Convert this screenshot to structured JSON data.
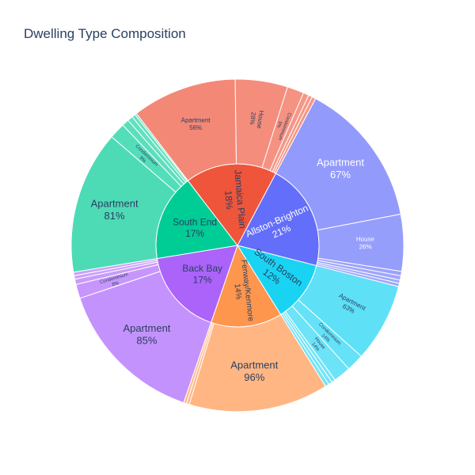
{
  "chart_data": {
    "type": "sunburst",
    "title": "Dwelling Type Composition",
    "colors": {
      "Allston-Brighton": "#636efa",
      "South Boston": "#19d3f3",
      "Fenway/Kenmore": "#ff964e",
      "Back Bay": "#ab63fa",
      "South End": "#00cc96",
      "Jamaica Plain": "#ef553b"
    },
    "inner": [
      {
        "name": "Allston-Brighton",
        "label": "Allston-Brighton\n21%",
        "share": 0.21
      },
      {
        "name": "South Boston",
        "label": "South Boston\n12%",
        "share": 0.12
      },
      {
        "name": "Fenway/Kenmore",
        "label": "Fenway/Kenmore\n14%",
        "share": 0.14
      },
      {
        "name": "Back Bay",
        "label": "Back Bay\n17%",
        "share": 0.17
      },
      {
        "name": "South End",
        "label": "South End\n17%",
        "share": 0.17
      },
      {
        "name": "Jamaica Plain",
        "label": "Jamaica Plain\n18%",
        "share": 0.18
      }
    ],
    "outer": {
      "Allston-Brighton": [
        {
          "name": "Apartment",
          "label": "Apartment\n67%",
          "share": 0.67
        },
        {
          "name": "House",
          "label": "House\n26%",
          "share": 0.26
        },
        {
          "name": "Condominium",
          "label": "",
          "share": 0.02
        },
        {
          "name": "Other",
          "label": "",
          "share": 0.02
        },
        {
          "name": "Other",
          "label": "",
          "share": 0.015
        },
        {
          "name": "Other",
          "label": "",
          "share": 0.015
        }
      ],
      "South Boston": [
        {
          "name": "Apartment",
          "label": "Apartment\n63%",
          "share": 0.63
        },
        {
          "name": "Condominium",
          "label": "Condominium\n14%",
          "share": 0.14
        },
        {
          "name": "House",
          "label": "House\n14%",
          "share": 0.14
        },
        {
          "name": "Other",
          "label": "",
          "share": 0.03
        },
        {
          "name": "Other",
          "label": "",
          "share": 0.03
        },
        {
          "name": "Other",
          "label": "",
          "share": 0.03
        }
      ],
      "Fenway/Kenmore": [
        {
          "name": "Apartment",
          "label": "Apartment\n96%",
          "share": 0.96
        },
        {
          "name": "Other",
          "label": "",
          "share": 0.02
        },
        {
          "name": "Other",
          "label": "",
          "share": 0.02
        }
      ],
      "Back Bay": [
        {
          "name": "Apartment",
          "label": "Apartment\n85%",
          "share": 0.85
        },
        {
          "name": "Condominium",
          "label": "Condominium\n8%",
          "share": 0.08
        },
        {
          "name": "Other",
          "label": "",
          "share": 0.03
        },
        {
          "name": "Other",
          "label": "",
          "share": 0.02
        },
        {
          "name": "Other",
          "label": "",
          "share": 0.02
        }
      ],
      "South End": [
        {
          "name": "Apartment",
          "label": "Apartment\n81%",
          "share": 0.81
        },
        {
          "name": "Condominium",
          "label": "Condominium\n9%",
          "share": 0.09
        },
        {
          "name": "Other",
          "label": "",
          "share": 0.04
        },
        {
          "name": "Other",
          "label": "",
          "share": 0.03
        },
        {
          "name": "Other",
          "label": "",
          "share": 0.02
        },
        {
          "name": "Other",
          "label": "",
          "share": 0.01
        }
      ],
      "Jamaica Plain": [
        {
          "name": "Apartment",
          "label": "Apartment\n56%",
          "share": 0.56
        },
        {
          "name": "House",
          "label": "House\n28%",
          "share": 0.28
        },
        {
          "name": "Condominium",
          "label": "Condominium\n9%",
          "share": 0.09
        },
        {
          "name": "Other",
          "label": "",
          "share": 0.03
        },
        {
          "name": "Other",
          "label": "",
          "share": 0.02
        },
        {
          "name": "Other",
          "label": "",
          "share": 0.02
        }
      ]
    }
  }
}
